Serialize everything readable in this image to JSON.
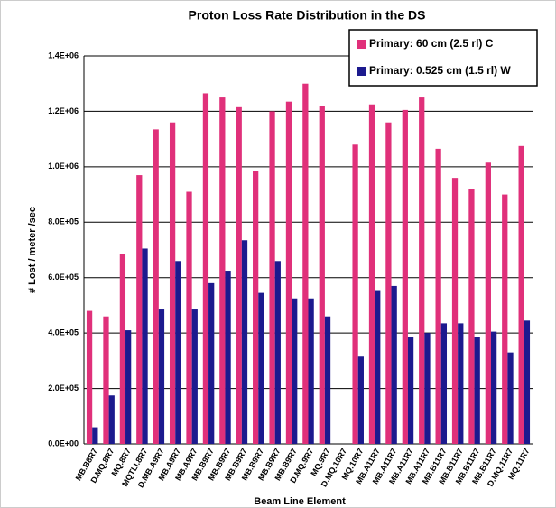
{
  "chart_data": {
    "type": "bar",
    "title": "Proton Loss Rate Distribution in the DS",
    "x_label": "Beam Line Element",
    "y_label": "# Lost / meter /sec",
    "categories": [
      "MB.B8R7",
      "D.MQ.8R7",
      "MQ.8R7",
      "MQTLI.8R7",
      "D.MB.A9R7",
      "MB.A9R7",
      "MB.A9R7",
      "MB.B9R7",
      "MB.B9R7",
      "MB.B9R7",
      "MB.B9R7",
      "MB.B9R7",
      "MB.B9R7",
      "D.MQ.9R7",
      "MQ.9R7",
      "D.MQ.10R7",
      "MQ.10R7",
      "MB.A11R7",
      "MB.A11R7",
      "MB.A11R7",
      "MB.A11R7",
      "MB.B11R7",
      "MB.B11R7",
      "MB.B11R7",
      "MB.B11R7",
      "D.MQ.11R7",
      "MQ.11R7"
    ],
    "series": [
      {
        "name": "Primary: 60 cm (2.5 rl) C",
        "color": "#e0307a",
        "values": [
          480000,
          460000,
          685000,
          970000,
          1135000,
          1160000,
          910000,
          1265000,
          1250000,
          1215000,
          985000,
          1200000,
          1235000,
          1300000,
          1220000,
          null,
          1080000,
          1225000,
          1160000,
          1205000,
          1250000,
          1065000,
          960000,
          920000,
          1015000,
          900000,
          1075000
        ]
      },
      {
        "name": "Primary: 0.525 cm (1.5 rl) W",
        "color": "#1c1a8e",
        "values": [
          60000,
          175000,
          410000,
          705000,
          485000,
          660000,
          485000,
          580000,
          625000,
          735000,
          545000,
          660000,
          525000,
          525000,
          460000,
          null,
          315000,
          555000,
          570000,
          385000,
          400000,
          435000,
          435000,
          385000,
          405000,
          330000,
          445000
        ]
      }
    ],
    "ylim": [
      0,
      1400000
    ],
    "yticks": [
      {
        "value": 0,
        "label": "0.0E+00"
      },
      {
        "value": 200000,
        "label": "2.0E+05"
      },
      {
        "value": 400000,
        "label": "4.0E+05"
      },
      {
        "value": 600000,
        "label": "6.0E+05"
      },
      {
        "value": 800000,
        "label": "8.0E+05"
      },
      {
        "value": 1000000,
        "label": "1.0E+06"
      },
      {
        "value": 1200000,
        "label": "1.2E+06"
      },
      {
        "value": 1400000,
        "label": "1.4E+06"
      }
    ],
    "grid": true,
    "legend": "top-right"
  }
}
